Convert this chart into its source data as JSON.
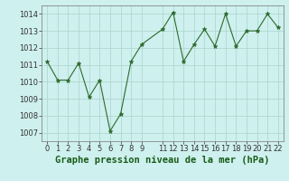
{
  "x": [
    0,
    1,
    2,
    3,
    4,
    5,
    6,
    7,
    8,
    9,
    11,
    12,
    13,
    14,
    15,
    16,
    17,
    18,
    19,
    20,
    21,
    22
  ],
  "y": [
    1011.2,
    1010.1,
    1010.1,
    1011.1,
    1009.1,
    1010.1,
    1007.1,
    1008.1,
    1011.2,
    1012.2,
    1013.1,
    1014.1,
    1011.2,
    1012.2,
    1013.1,
    1012.1,
    1014.0,
    1012.1,
    1013.0,
    1013.0,
    1014.0,
    1013.2
  ],
  "line_color": "#2d6a2d",
  "marker": "*",
  "background_color": "#cef0ee",
  "grid_color": "#aad4cc",
  "xlabel": "Graphe pression niveau de la mer (hPa)",
  "ylim": [
    1006.5,
    1014.5
  ],
  "xlim": [
    -0.5,
    22.5
  ],
  "yticks": [
    1007,
    1008,
    1009,
    1010,
    1011,
    1012,
    1013,
    1014
  ],
  "xticks": [
    0,
    1,
    2,
    3,
    4,
    5,
    6,
    7,
    8,
    9,
    11,
    12,
    13,
    14,
    15,
    16,
    17,
    18,
    19,
    20,
    21,
    22
  ],
  "tick_fontsize": 6,
  "xlabel_fontsize": 7.5,
  "xlabel_fontweight": "bold"
}
